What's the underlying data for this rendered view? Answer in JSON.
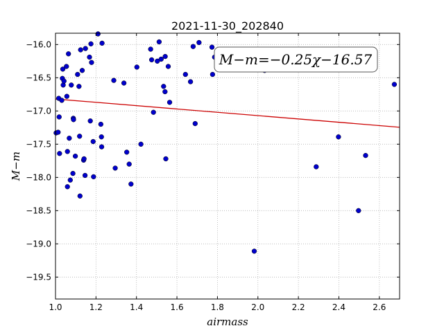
{
  "chart_data": {
    "type": "scatter",
    "title": "2021-11-30_202840",
    "xlabel": "airmass",
    "ylabel": "M−m",
    "xlim": [
      1.0,
      2.7
    ],
    "ylim": [
      -15.83,
      -19.83
    ],
    "y_inverted": true,
    "grid": true,
    "x_ticks": [
      1.0,
      1.2,
      1.4,
      1.6,
      1.8,
      2.0,
      2.2,
      2.4,
      2.6
    ],
    "x_tick_labels": [
      "1.0",
      "1.2",
      "1.4",
      "1.6",
      "1.8",
      "2.0",
      "2.2",
      "2.4",
      "2.6"
    ],
    "y_ticks": [
      -16.0,
      -16.5,
      -17.0,
      -17.5,
      -18.0,
      -18.5,
      -19.0,
      -19.5
    ],
    "y_tick_labels": [
      "−16.0",
      "−16.5",
      "−17.0",
      "−17.5",
      "−18.0",
      "−18.5",
      "−19.0",
      "−19.5"
    ],
    "annotation": "M−m=−0.25χ−16.57",
    "fit": {
      "slope": -0.25,
      "intercept": -16.57,
      "color": "#cc0000"
    },
    "point_color": "#0000cc",
    "points": [
      {
        "x": 1.003,
        "y": -17.33
      },
      {
        "x": 1.013,
        "y": -17.32
      },
      {
        "x": 1.016,
        "y": -16.81
      },
      {
        "x": 1.018,
        "y": -17.09
      },
      {
        "x": 1.02,
        "y": -17.64
      },
      {
        "x": 1.031,
        "y": -16.84
      },
      {
        "x": 1.034,
        "y": -16.51
      },
      {
        "x": 1.036,
        "y": -16.37
      },
      {
        "x": 1.038,
        "y": -16.61
      },
      {
        "x": 1.042,
        "y": -16.55
      },
      {
        "x": 1.054,
        "y": -16.33
      },
      {
        "x": 1.056,
        "y": -16.78
      },
      {
        "x": 1.059,
        "y": -17.61
      },
      {
        "x": 1.059,
        "y": -18.14
      },
      {
        "x": 1.064,
        "y": -16.14
      },
      {
        "x": 1.068,
        "y": -17.41
      },
      {
        "x": 1.073,
        "y": -18.04
      },
      {
        "x": 1.078,
        "y": -16.61
      },
      {
        "x": 1.086,
        "y": -17.94
      },
      {
        "x": 1.088,
        "y": -17.11
      },
      {
        "x": 1.089,
        "y": -17.13
      },
      {
        "x": 1.098,
        "y": -17.68
      },
      {
        "x": 1.109,
        "y": -16.45
      },
      {
        "x": 1.116,
        "y": -16.63
      },
      {
        "x": 1.119,
        "y": -17.38
      },
      {
        "x": 1.121,
        "y": -18.28
      },
      {
        "x": 1.124,
        "y": -16.08
      },
      {
        "x": 1.132,
        "y": -16.39
      },
      {
        "x": 1.139,
        "y": -17.74
      },
      {
        "x": 1.141,
        "y": -17.72
      },
      {
        "x": 1.146,
        "y": -17.97
      },
      {
        "x": 1.148,
        "y": -16.06
      },
      {
        "x": 1.168,
        "y": -16.19
      },
      {
        "x": 1.172,
        "y": -17.15
      },
      {
        "x": 1.175,
        "y": -15.99
      },
      {
        "x": 1.178,
        "y": -16.27
      },
      {
        "x": 1.186,
        "y": -17.46
      },
      {
        "x": 1.188,
        "y": -17.99
      },
      {
        "x": 1.21,
        "y": -15.84
      },
      {
        "x": 1.224,
        "y": -17.2
      },
      {
        "x": 1.227,
        "y": -17.39
      },
      {
        "x": 1.228,
        "y": -17.54
      },
      {
        "x": 1.23,
        "y": -15.98
      },
      {
        "x": 1.288,
        "y": -16.54
      },
      {
        "x": 1.295,
        "y": -17.86
      },
      {
        "x": 1.338,
        "y": -16.58
      },
      {
        "x": 1.352,
        "y": -17.62
      },
      {
        "x": 1.364,
        "y": -17.8
      },
      {
        "x": 1.373,
        "y": -18.1
      },
      {
        "x": 1.402,
        "y": -16.34
      },
      {
        "x": 1.422,
        "y": -17.5
      },
      {
        "x": 1.47,
        "y": -16.07
      },
      {
        "x": 1.475,
        "y": -16.23
      },
      {
        "x": 1.484,
        "y": -17.02
      },
      {
        "x": 1.503,
        "y": -16.25
      },
      {
        "x": 1.512,
        "y": -15.96
      },
      {
        "x": 1.522,
        "y": -16.22
      },
      {
        "x": 1.534,
        "y": -16.63
      },
      {
        "x": 1.541,
        "y": -16.71
      },
      {
        "x": 1.542,
        "y": -16.18
      },
      {
        "x": 1.545,
        "y": -17.72
      },
      {
        "x": 1.557,
        "y": -16.33
      },
      {
        "x": 1.564,
        "y": -16.87
      },
      {
        "x": 1.642,
        "y": -16.45
      },
      {
        "x": 1.667,
        "y": -16.56
      },
      {
        "x": 1.68,
        "y": -16.03
      },
      {
        "x": 1.69,
        "y": -17.19
      },
      {
        "x": 1.709,
        "y": -15.97
      },
      {
        "x": 1.773,
        "y": -16.04
      },
      {
        "x": 1.776,
        "y": -16.45
      },
      {
        "x": 1.786,
        "y": -16.19
      },
      {
        "x": 1.982,
        "y": -19.11
      },
      {
        "x": 2.033,
        "y": -16.39
      },
      {
        "x": 2.288,
        "y": -17.84
      },
      {
        "x": 2.398,
        "y": -17.39
      },
      {
        "x": 2.497,
        "y": -18.5
      },
      {
        "x": 2.532,
        "y": -17.67
      },
      {
        "x": 2.674,
        "y": -16.6
      }
    ]
  }
}
